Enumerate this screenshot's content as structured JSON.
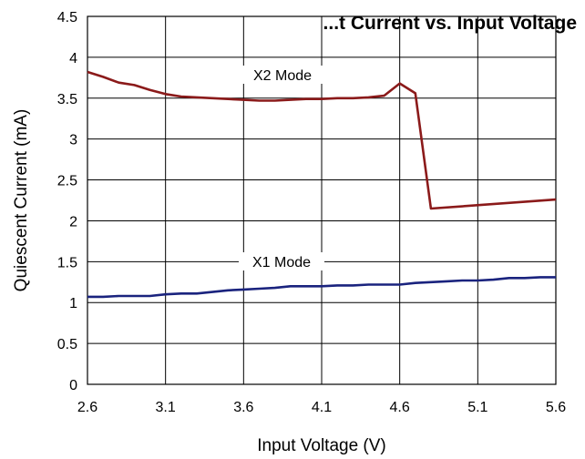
{
  "chart_data": {
    "type": "line",
    "title": "...t Current vs. Input Voltage",
    "xlabel": "Input Voltage (V)",
    "ylabel": "Quiescent Current (mA)",
    "xlim": [
      2.6,
      5.6
    ],
    "ylim": [
      0,
      4.5
    ],
    "x_ticks": [
      "2.6",
      "3.1",
      "3.6",
      "4.1",
      "4.6",
      "5.1",
      "5.6"
    ],
    "y_ticks": [
      "0",
      "0.5",
      "1",
      "1.5",
      "2",
      "2.5",
      "3",
      "3.5",
      "4",
      "4.5"
    ],
    "grid": true,
    "series": [
      {
        "name": "X2 Mode",
        "color": "#8B1A1A",
        "x": [
          2.6,
          2.7,
          2.8,
          2.9,
          3.0,
          3.1,
          3.2,
          3.3,
          3.4,
          3.5,
          3.6,
          3.7,
          3.8,
          3.9,
          4.0,
          4.1,
          4.2,
          4.3,
          4.4,
          4.5,
          4.6,
          4.7,
          4.8,
          5.6
        ],
        "y": [
          3.82,
          3.76,
          3.69,
          3.66,
          3.6,
          3.55,
          3.52,
          3.51,
          3.5,
          3.49,
          3.48,
          3.47,
          3.47,
          3.48,
          3.49,
          3.49,
          3.5,
          3.5,
          3.51,
          3.53,
          3.68,
          3.56,
          2.15,
          2.26
        ]
      },
      {
        "name": "X1 Mode",
        "color": "#1A237E",
        "x": [
          2.6,
          2.7,
          2.8,
          2.9,
          3.0,
          3.1,
          3.2,
          3.3,
          3.4,
          3.5,
          3.6,
          3.7,
          3.8,
          3.9,
          4.0,
          4.1,
          4.2,
          4.3,
          4.4,
          4.5,
          4.6,
          4.7,
          4.8,
          4.9,
          5.0,
          5.1,
          5.2,
          5.3,
          5.4,
          5.5,
          5.6
        ],
        "y": [
          1.07,
          1.07,
          1.08,
          1.08,
          1.08,
          1.1,
          1.11,
          1.11,
          1.13,
          1.15,
          1.16,
          1.17,
          1.18,
          1.2,
          1.2,
          1.2,
          1.21,
          1.21,
          1.22,
          1.22,
          1.22,
          1.24,
          1.25,
          1.26,
          1.27,
          1.27,
          1.28,
          1.3,
          1.3,
          1.31,
          1.31
        ]
      }
    ]
  }
}
